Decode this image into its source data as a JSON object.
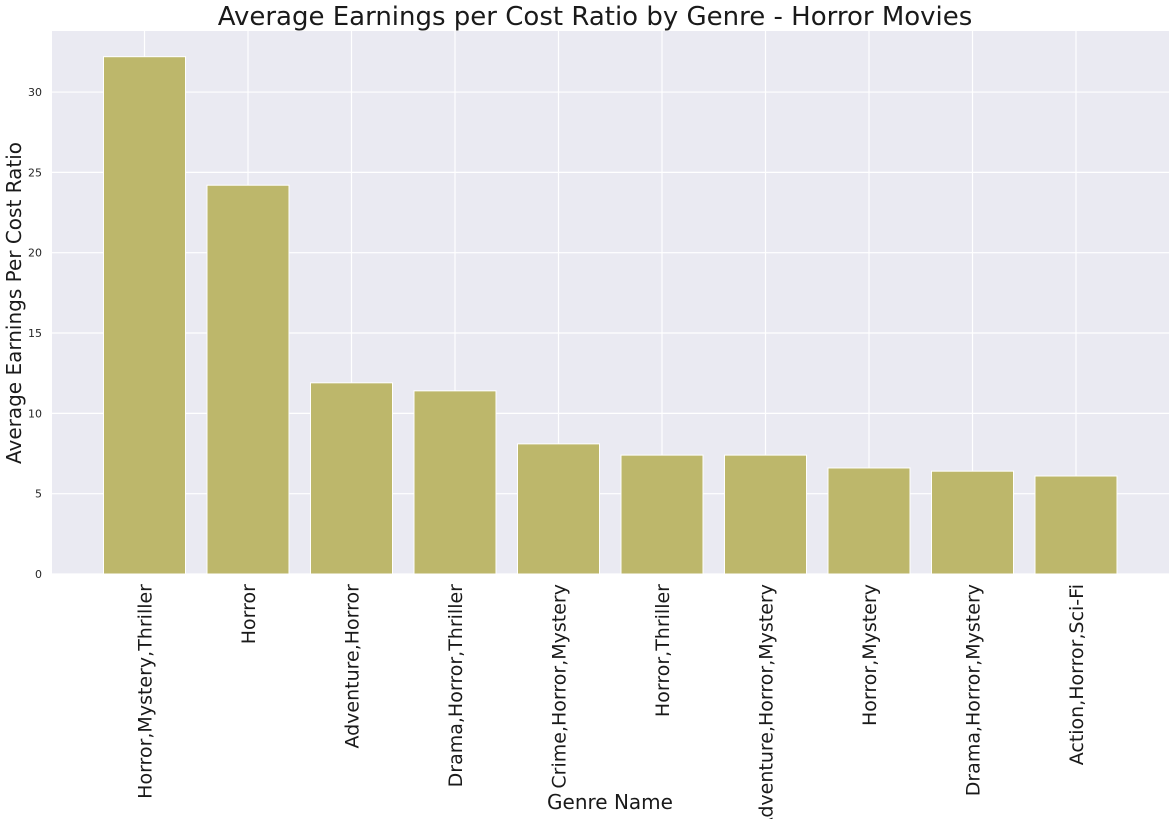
{
  "chart_data": {
    "type": "bar",
    "title": "Average Earnings per Cost Ratio by Genre - Horror Movies",
    "xlabel": "Genre Name",
    "ylabel": "Average Earnings Per Cost Ratio",
    "categories": [
      "Horror,Mystery,Thriller",
      "Horror",
      "Adventure,Horror",
      "Drama,Horror,Thriller",
      "Crime,Horror,Mystery",
      "Horror,Thriller",
      "Adventure,Horror,Mystery",
      "Horror,Mystery",
      "Drama,Horror,Mystery",
      "Action,Horror,Sci-Fi"
    ],
    "values": [
      32.2,
      24.2,
      11.9,
      11.4,
      8.1,
      7.4,
      7.4,
      6.6,
      6.4,
      6.1
    ],
    "ylim": [
      0,
      33.8
    ],
    "yticks": [
      0,
      5,
      10,
      15,
      20,
      25,
      30
    ],
    "grid": true,
    "bar_color": "#bdb76b",
    "background_color": "#eaeaf2",
    "grid_color": "#ffffff"
  }
}
